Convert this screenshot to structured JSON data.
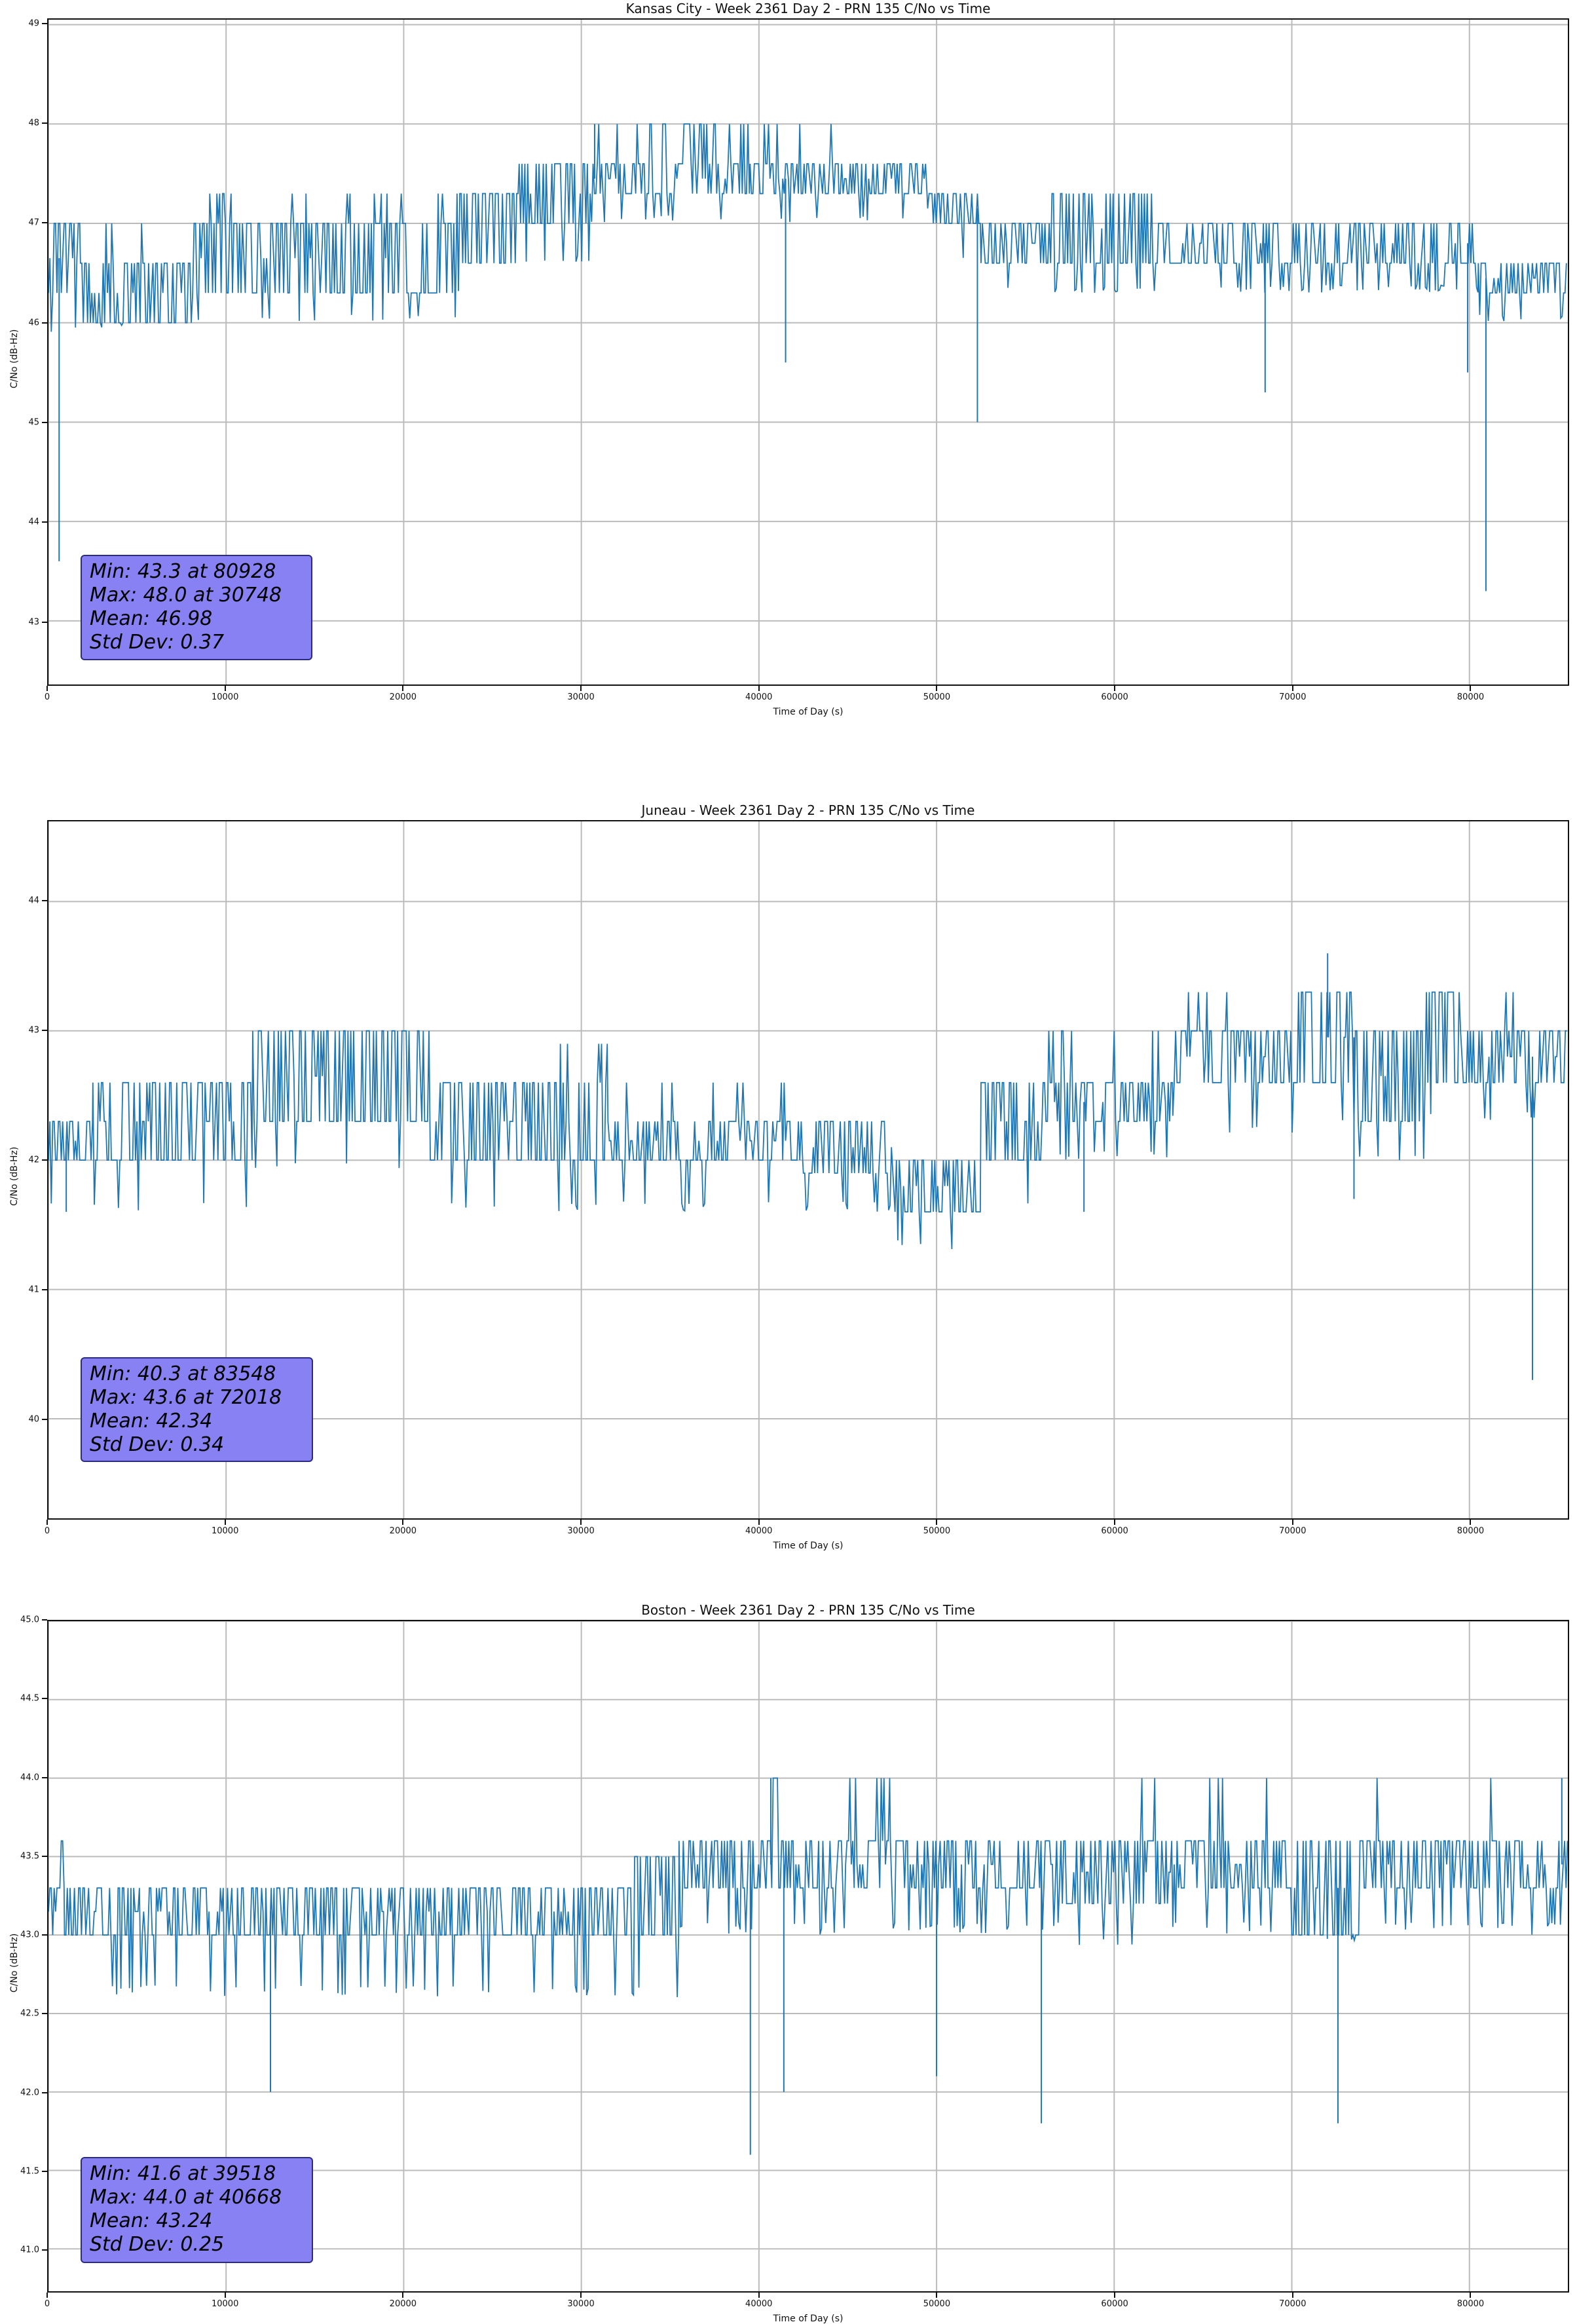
{
  "figure": {
    "background": "#ffffff",
    "series_color": "#1f77b4",
    "grid_color": "#bbbbbb",
    "spine_color": "#111111",
    "annotation_bg": "#8781f3",
    "annotation_border": "#2b2b80"
  },
  "chart_data": [
    {
      "type": "line",
      "id": "kansas-city",
      "title": "Kansas City - Week 2361 Day 2 - PRN 135 C/No vs Time",
      "xlabel": "Time of Day (s)",
      "ylabel": "C/No (dB-Hz)",
      "xlim": [
        0,
        85540
      ],
      "ylim": [
        42.36,
        49.05
      ],
      "grid": true,
      "legend": "none",
      "xticks": {
        "values": [
          0,
          10000,
          20000,
          30000,
          40000,
          50000,
          60000,
          70000,
          80000
        ],
        "labels": [
          "0",
          "10000",
          "20000",
          "30000",
          "40000",
          "50000",
          "60000",
          "70000",
          "80000"
        ]
      },
      "yticks": {
        "values": [
          43,
          44,
          45,
          46,
          47,
          48,
          49
        ],
        "labels": [
          "43",
          "44",
          "45",
          "46",
          "47",
          "48",
          "49"
        ]
      },
      "stats": {
        "min": 43.3,
        "min_time": 80928,
        "max": 48.0,
        "max_time": 30748,
        "mean": 46.98,
        "std_dev": 0.37
      },
      "annotation_lines": [
        "Min: 43.3 at 80928",
        "Max: 48.0 at 30748",
        "Mean: 46.98",
        "Std Dev: 0.37"
      ],
      "segments": [
        {
          "t0": 0,
          "t1": 1800,
          "lo": 46.3,
          "hi": 47.0,
          "dn": 45.9,
          "dnp": 0.06
        },
        {
          "t0": 1800,
          "t1": 8200,
          "lo": 46.0,
          "hi": 46.6,
          "dn": 45.9,
          "dnp": 0.05,
          "up": 47.0,
          "upp": 0.06
        },
        {
          "t0": 8200,
          "t1": 14500,
          "lo": 46.3,
          "hi": 47.0,
          "dn": 46.0,
          "dnp": 0.05,
          "up": 47.3,
          "upp": 0.08
        },
        {
          "t0": 14500,
          "t1": 23000,
          "lo": 46.3,
          "hi": 47.0,
          "dn": 46.0,
          "dnp": 0.04,
          "up": 47.3,
          "upp": 0.05
        },
        {
          "t0": 23000,
          "t1": 26500,
          "lo": 46.6,
          "hi": 47.3,
          "dn": 46.3,
          "dnp": 0.05
        },
        {
          "t0": 26500,
          "t1": 30500,
          "lo": 47.0,
          "hi": 47.6,
          "dn": 46.6,
          "dnp": 0.04
        },
        {
          "t0": 30500,
          "t1": 34500,
          "lo": 47.3,
          "hi": 47.6,
          "dn": 47.0,
          "dnp": 0.05,
          "up": 48.0,
          "upp": 0.1
        },
        {
          "t0": 34500,
          "t1": 39500,
          "lo": 47.3,
          "hi": 47.6,
          "dn": 47.0,
          "dnp": 0.05,
          "up": 48.0,
          "upp": 0.22
        },
        {
          "t0": 39500,
          "t1": 44500,
          "lo": 47.3,
          "hi": 47.6,
          "dn": 47.0,
          "dnp": 0.06,
          "up": 48.0,
          "upp": 0.07
        },
        {
          "t0": 44500,
          "t1": 49500,
          "lo": 47.3,
          "hi": 47.6,
          "dn": 47.0,
          "dnp": 0.08
        },
        {
          "t0": 49500,
          "t1": 52500,
          "lo": 47.0,
          "hi": 47.3,
          "dn": 46.6,
          "dnp": 0.07
        },
        {
          "t0": 52500,
          "t1": 56500,
          "lo": 46.6,
          "hi": 47.0,
          "dn": 46.3,
          "dnp": 0.07
        },
        {
          "t0": 56500,
          "t1": 62500,
          "lo": 46.6,
          "hi": 47.3,
          "dn": 46.3,
          "dnp": 0.12
        },
        {
          "t0": 62500,
          "t1": 66800,
          "lo": 46.6,
          "hi": 47.0,
          "dn": 46.3,
          "dnp": 0.05
        },
        {
          "t0": 66800,
          "t1": 80500,
          "lo": 46.6,
          "hi": 47.0,
          "dn": 46.3,
          "dnp": 0.18
        },
        {
          "t0": 80500,
          "t1": 85540,
          "lo": 46.3,
          "hi": 46.6,
          "dn": 46.0,
          "dnp": 0.15
        }
      ],
      "spikes": [
        [
          600,
          43.6
        ],
        [
          30748,
          48.0
        ],
        [
          41500,
          45.6
        ],
        [
          52300,
          45.0
        ],
        [
          68500,
          45.3
        ],
        [
          79900,
          45.5
        ],
        [
          80928,
          43.3
        ]
      ]
    },
    {
      "type": "line",
      "id": "juneau",
      "title": "Juneau - Week 2361 Day 2 - PRN 135 C/No vs Time",
      "xlabel": "Time of Day (s)",
      "ylabel": "C/No (dB-Hz)",
      "xlim": [
        0,
        85540
      ],
      "ylim": [
        39.23,
        44.62
      ],
      "grid": true,
      "legend": "none",
      "xticks": {
        "values": [
          0,
          10000,
          20000,
          30000,
          40000,
          50000,
          60000,
          70000,
          80000
        ],
        "labels": [
          "0",
          "10000",
          "20000",
          "30000",
          "40000",
          "50000",
          "60000",
          "70000",
          "80000"
        ]
      },
      "yticks": {
        "values": [
          40,
          41,
          42,
          43,
          44
        ],
        "labels": [
          "40",
          "41",
          "42",
          "43",
          "44"
        ]
      },
      "stats": {
        "min": 40.3,
        "min_time": 83548,
        "max": 43.6,
        "max_time": 72018,
        "mean": 42.34,
        "std_dev": 0.34
      },
      "annotation_lines": [
        "Min: 40.3 at 83548",
        "Max: 43.6 at 72018",
        "Mean: 42.34",
        "Std Dev: 0.34"
      ],
      "segments": [
        {
          "t0": 0,
          "t1": 2500,
          "lo": 42.0,
          "hi": 42.3,
          "dn": 41.6,
          "dnp": 0.08
        },
        {
          "t0": 2500,
          "t1": 11500,
          "lo": 42.0,
          "hi": 42.6,
          "dn": 41.6,
          "dnp": 0.04
        },
        {
          "t0": 11500,
          "t1": 21500,
          "lo": 42.3,
          "hi": 43.0,
          "dn": 41.9,
          "dnp": 0.05
        },
        {
          "t0": 21500,
          "t1": 28500,
          "lo": 42.0,
          "hi": 42.6,
          "dn": 41.6,
          "dnp": 0.09
        },
        {
          "t0": 28500,
          "t1": 31500,
          "lo": 42.0,
          "hi": 42.6,
          "dn": 41.6,
          "dnp": 0.05,
          "up": 42.9,
          "upp": 0.06
        },
        {
          "t0": 31500,
          "t1": 37500,
          "lo": 42.0,
          "hi": 42.3,
          "dn": 41.6,
          "dnp": 0.08,
          "up": 42.6,
          "upp": 0.05
        },
        {
          "t0": 37500,
          "t1": 42500,
          "lo": 42.0,
          "hi": 42.3,
          "dn": 41.6,
          "dnp": 0.03,
          "up": 42.6,
          "upp": 0.07
        },
        {
          "t0": 42500,
          "t1": 47500,
          "lo": 41.9,
          "hi": 42.3,
          "dn": 41.6,
          "dnp": 0.15
        },
        {
          "t0": 47500,
          "t1": 52500,
          "lo": 41.6,
          "hi": 42.0,
          "dn": 41.3,
          "dnp": 0.05
        },
        {
          "t0": 52500,
          "t1": 56000,
          "lo": 42.0,
          "hi": 42.6,
          "dn": 41.6,
          "dnp": 0.04
        },
        {
          "t0": 56000,
          "t1": 63300,
          "lo": 42.3,
          "hi": 42.6,
          "dn": 42.0,
          "dnp": 0.1,
          "up": 43.0,
          "upp": 0.09
        },
        {
          "t0": 63300,
          "t1": 66500,
          "lo": 42.6,
          "hi": 43.0,
          "dn": 42.3,
          "dnp": 0.05,
          "up": 43.3,
          "upp": 0.1
        },
        {
          "t0": 66500,
          "t1": 70300,
          "lo": 42.6,
          "hi": 43.0,
          "dn": 42.2,
          "dnp": 0.1
        },
        {
          "t0": 70300,
          "t1": 73500,
          "lo": 42.6,
          "hi": 43.3,
          "dn": 42.3,
          "dnp": 0.06
        },
        {
          "t0": 73500,
          "t1": 77500,
          "lo": 42.3,
          "hi": 43.0,
          "dn": 42.0,
          "dnp": 0.09
        },
        {
          "t0": 77500,
          "t1": 79500,
          "lo": 42.6,
          "hi": 43.3,
          "dn": 42.3,
          "dnp": 0.04
        },
        {
          "t0": 79500,
          "t1": 83400,
          "lo": 42.6,
          "hi": 43.0,
          "dn": 42.3,
          "dnp": 0.05,
          "up": 43.3,
          "upp": 0.03
        },
        {
          "t0": 83400,
          "t1": 85540,
          "lo": 42.6,
          "hi": 43.0,
          "dn": 42.3,
          "dnp": 0.08
        }
      ],
      "spikes": [
        [
          1000,
          41.6
        ],
        [
          58300,
          41.6
        ],
        [
          72018,
          43.6
        ],
        [
          73500,
          41.7
        ],
        [
          83548,
          40.3
        ]
      ]
    },
    {
      "type": "line",
      "id": "boston",
      "title": "Boston - Week 2361 Day 2 - PRN 135 C/No vs Time",
      "xlabel": "Time of Day (s)",
      "ylabel": "C/No (dB-Hz)",
      "xlim": [
        0,
        85540
      ],
      "ylim": [
        40.73,
        45.0
      ],
      "grid": true,
      "legend": "none",
      "xticks": {
        "values": [
          0,
          10000,
          20000,
          30000,
          40000,
          50000,
          60000,
          70000,
          80000
        ],
        "labels": [
          "0",
          "10000",
          "20000",
          "30000",
          "40000",
          "50000",
          "60000",
          "70000",
          "80000"
        ]
      },
      "yticks": {
        "values": [
          41.0,
          41.5,
          42.0,
          42.5,
          43.0,
          43.5,
          44.0,
          44.5,
          45.0
        ],
        "labels": [
          "41.0",
          "41.5",
          "42.0",
          "42.5",
          "43.0",
          "43.5",
          "44.0",
          "44.5",
          "45.0"
        ]
      },
      "stats": {
        "min": 41.6,
        "min_time": 39518,
        "max": 44.0,
        "max_time": 40668,
        "mean": 43.24,
        "std_dev": 0.25
      },
      "annotation_lines": [
        "Min: 41.6 at 39518",
        "Max: 44.0 at 40668",
        "Mean: 43.24",
        "Std Dev: 0.25"
      ],
      "segments": [
        {
          "t0": 0,
          "t1": 900,
          "lo": 43.0,
          "hi": 43.3,
          "up": 43.6,
          "upp": 0.15
        },
        {
          "t0": 900,
          "t1": 3200,
          "lo": 43.0,
          "hi": 43.3
        },
        {
          "t0": 3200,
          "t1": 12300,
          "lo": 43.0,
          "hi": 43.3,
          "dn": 42.6,
          "dnp": 0.12
        },
        {
          "t0": 12300,
          "t1": 33000,
          "lo": 43.0,
          "hi": 43.3,
          "dn": 42.6,
          "dnp": 0.14
        },
        {
          "t0": 33000,
          "t1": 35500,
          "lo": 43.0,
          "hi": 43.5,
          "dn": 42.6,
          "dnp": 0.05
        },
        {
          "t0": 35500,
          "t1": 40400,
          "lo": 43.3,
          "hi": 43.6,
          "dn": 43.0,
          "dnp": 0.1
        },
        {
          "t0": 40400,
          "t1": 47400,
          "lo": 43.3,
          "hi": 43.6,
          "dn": 43.0,
          "dnp": 0.08,
          "up": 44.0,
          "upp": 0.1
        },
        {
          "t0": 47400,
          "t1": 57000,
          "lo": 43.3,
          "hi": 43.6,
          "dn": 43.0,
          "dnp": 0.16
        },
        {
          "t0": 57000,
          "t1": 63300,
          "lo": 43.2,
          "hi": 43.6,
          "dn": 42.9,
          "dnp": 0.1,
          "up": 44.0,
          "upp": 0.03
        },
        {
          "t0": 63300,
          "t1": 70000,
          "lo": 43.3,
          "hi": 43.6,
          "dn": 43.0,
          "dnp": 0.12,
          "up": 44.0,
          "upp": 0.015
        },
        {
          "t0": 70000,
          "t1": 74000,
          "lo": 43.0,
          "hi": 43.6,
          "dn": 42.9,
          "dnp": 0.14
        },
        {
          "t0": 74000,
          "t1": 85540,
          "lo": 43.3,
          "hi": 43.6,
          "dn": 43.0,
          "dnp": 0.12,
          "up": 44.0,
          "upp": 0.008
        }
      ],
      "spikes": [
        [
          12500,
          42.0
        ],
        [
          39518,
          41.6
        ],
        [
          40668,
          44.0
        ],
        [
          41400,
          42.0
        ],
        [
          50000,
          42.1
        ],
        [
          55900,
          41.8
        ],
        [
          72600,
          41.8
        ],
        [
          85200,
          44.0
        ]
      ]
    }
  ]
}
